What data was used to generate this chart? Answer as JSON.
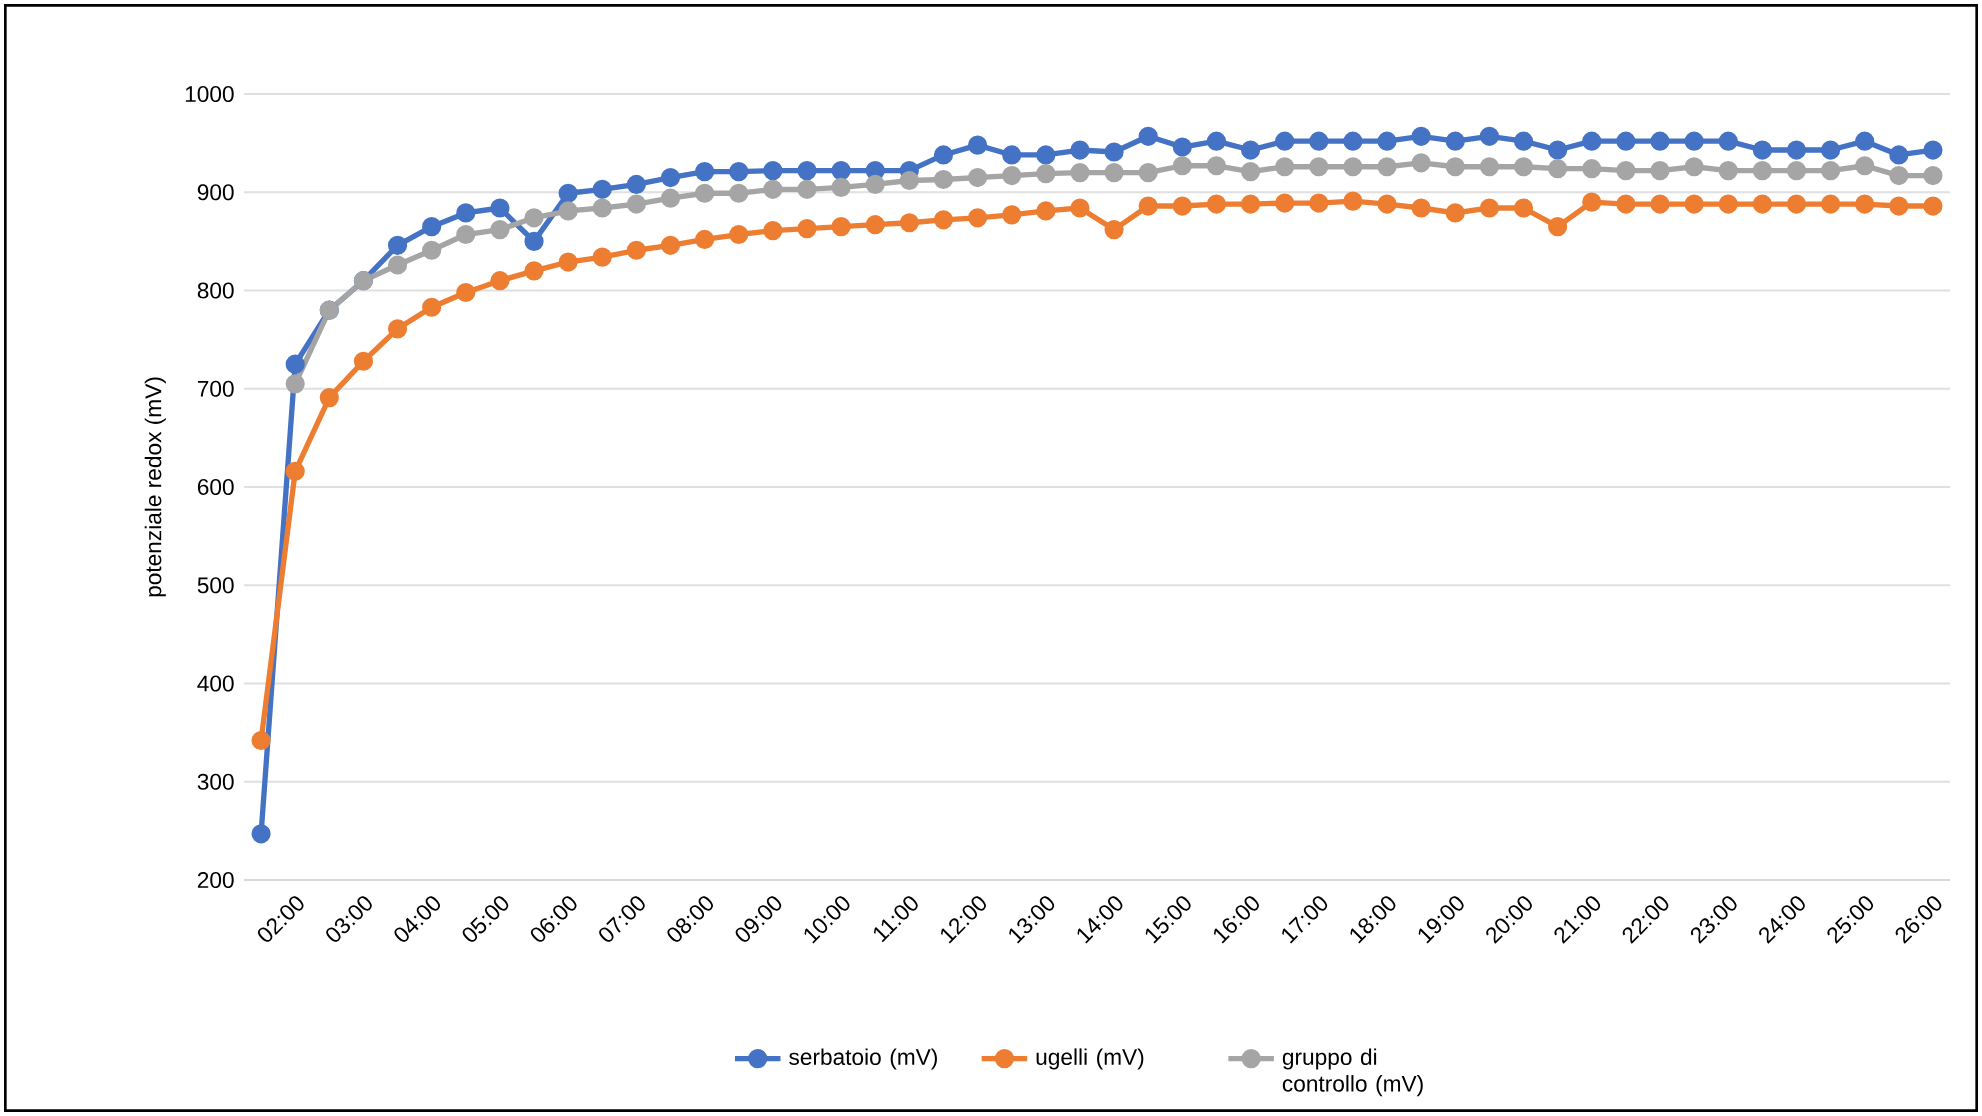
{
  "chart_data": {
    "type": "line",
    "ylabel": "potenziale redox (mV)",
    "categories": [
      null,
      "02:00",
      null,
      "03:00",
      null,
      "04:00",
      null,
      "05:00",
      null,
      "06:00",
      null,
      "07:00",
      null,
      "08:00",
      null,
      "09:00",
      null,
      "10:00",
      null,
      "11:00",
      null,
      "12:00",
      null,
      "13:00",
      null,
      "14:00",
      null,
      "15:00",
      null,
      "16:00",
      null,
      "17:00",
      null,
      "18:00",
      null,
      "19:00",
      null,
      "20:00",
      null,
      "21:00",
      null,
      "22:00",
      null,
      "23:00",
      null,
      "24:00",
      null,
      "25:00",
      null,
      "26:00"
    ],
    "series": [
      {
        "name": "serbatoio (mV)",
        "color": "#4472c4",
        "values": [
          247,
          725,
          780,
          810,
          846,
          865,
          879,
          884,
          850,
          899,
          903,
          908,
          915,
          921,
          921,
          922,
          922,
          922,
          922,
          922,
          938,
          948,
          938,
          938,
          943,
          941,
          957,
          946,
          952,
          943,
          952,
          952,
          952,
          952,
          957,
          952,
          957,
          952,
          943,
          952,
          952,
          952,
          952,
          952,
          943,
          943,
          943,
          952,
          938,
          943
        ]
      },
      {
        "name": "ugelli (mV)",
        "color": "#ed7d31",
        "values": [
          342,
          616,
          691,
          728,
          761,
          783,
          798,
          810,
          820,
          829,
          834,
          841,
          846,
          852,
          857,
          861,
          863,
          865,
          867,
          869,
          872,
          874,
          877,
          881,
          884,
          862,
          886,
          886,
          888,
          888,
          889,
          889,
          891,
          888,
          884,
          879,
          884,
          884,
          865,
          890,
          888,
          888,
          888,
          888,
          888,
          888,
          888,
          888,
          886,
          886
        ]
      },
      {
        "name": "gruppo di controllo (mV)",
        "color": "#a5a5a5",
        "values": [
          null,
          705,
          780,
          810,
          826,
          841,
          857,
          862,
          874,
          881,
          884,
          888,
          894,
          899,
          899,
          903,
          903,
          905,
          908,
          912,
          913,
          915,
          917,
          919,
          920,
          920,
          920,
          927,
          927,
          921,
          926,
          926,
          926,
          926,
          930,
          926,
          926,
          926,
          924,
          924,
          922,
          922,
          926,
          922,
          922,
          922,
          922,
          927,
          917,
          917
        ]
      }
    ],
    "ylim": [
      200,
      1000
    ],
    "yticks": [
      200,
      300,
      400,
      500,
      600,
      700,
      800,
      900,
      1000
    ],
    "grid": "y",
    "legend": "bottom",
    "marker": "circle",
    "line_style": "solid"
  }
}
